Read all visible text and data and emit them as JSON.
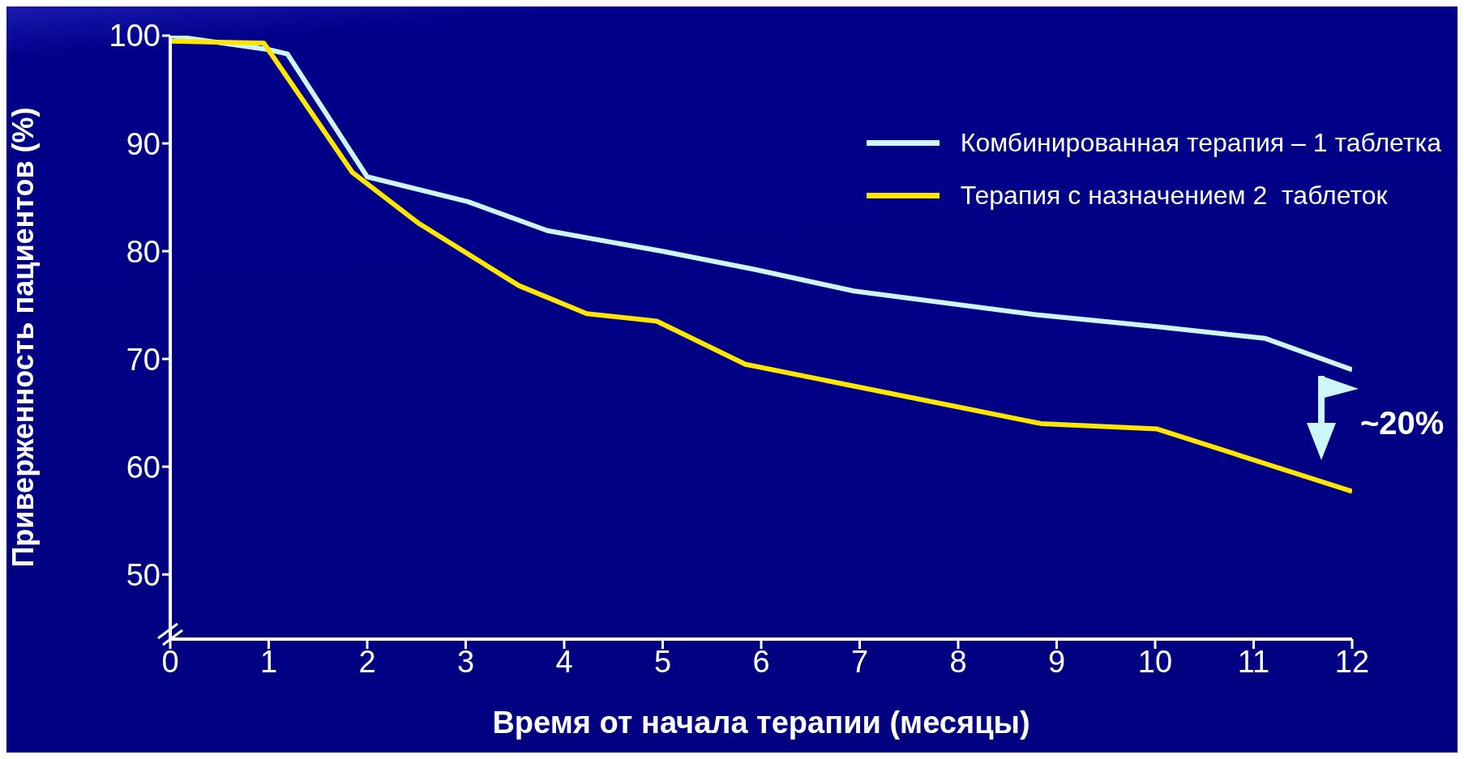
{
  "chart_data": {
    "type": "line",
    "xlabel": "Время от начала терапии (месяцы)",
    "ylabel": "Приверженность пациентов (%)",
    "xlim": [
      0,
      12
    ],
    "xticks": [
      0,
      1,
      2,
      3,
      4,
      5,
      6,
      7,
      8,
      9,
      10,
      11,
      12
    ],
    "ylim": [
      44,
      100
    ],
    "yticks": [
      50,
      60,
      70,
      80,
      90,
      100
    ],
    "series": [
      {
        "name": "Комбинированная терапия – 1 таблетка",
        "color": "#ccf6fa",
        "x": [
          0,
          1.0,
          1.19,
          2.0,
          3.02,
          3.83,
          4.99,
          5.94,
          6.94,
          8.79,
          10.02,
          11.12,
          12
        ],
        "values": [
          100,
          98.7,
          98.3,
          86.9,
          84.6,
          81.9,
          80.0,
          78.3,
          76.3,
          74.1,
          73.0,
          71.9,
          69.0
        ]
      },
      {
        "name": "Терапия с назначением 2  таблеток",
        "color": "#ffe600",
        "x": [
          0,
          0.95,
          1.85,
          2.52,
          3.54,
          4.23,
          4.94,
          5.84,
          8.84,
          10.02,
          12
        ],
        "values": [
          99.5,
          99.3,
          87.3,
          82.6,
          76.8,
          74.2,
          73.5,
          69.5,
          64.0,
          63.5,
          57.7
        ]
      }
    ],
    "legend": "top right",
    "marker": "none",
    "line_style": "solid",
    "annotations": [
      "~20%"
    ]
  }
}
